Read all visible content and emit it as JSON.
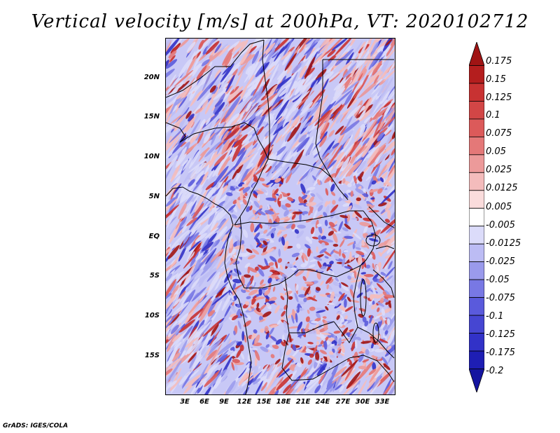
{
  "title": "Vertical velocity [m/s] at 200hPa, VT: 2020102712",
  "footer": "GrADS: IGES/COLA",
  "map": {
    "lat_ticks": [
      "20N",
      "15N",
      "10N",
      "5N",
      "EQ",
      "5S",
      "10S",
      "15S"
    ],
    "lon_ticks": [
      "3E",
      "6E",
      "9E",
      "12E",
      "15E",
      "18E",
      "21E",
      "24E",
      "27E",
      "30E",
      "33E"
    ]
  },
  "colorbar": {
    "labels": [
      "0.175",
      "0.15",
      "0.125",
      "0.1",
      "0.075",
      "0.05",
      "0.025",
      "0.0125",
      "0.005",
      "-0.005",
      "-0.0125",
      "-0.025",
      "-0.05",
      "-0.075",
      "-0.1",
      "-0.125",
      "-0.175",
      "-0.2"
    ],
    "colors": [
      "#a01414",
      "#b41e1e",
      "#c83232",
      "#d24646",
      "#dc5a5a",
      "#e47878",
      "#ec9a9a",
      "#f4bcbc",
      "#fadcdc",
      "#ffffff",
      "#dcdcfa",
      "#bcbcf4",
      "#9a9aec",
      "#7878e4",
      "#5a5adc",
      "#4646d2",
      "#3232c8",
      "#1e1eb4",
      "#1414a0"
    ]
  },
  "colors": {
    "positive": "#d9534f",
    "negative": "#5a5adc",
    "coastline": "#000000"
  }
}
